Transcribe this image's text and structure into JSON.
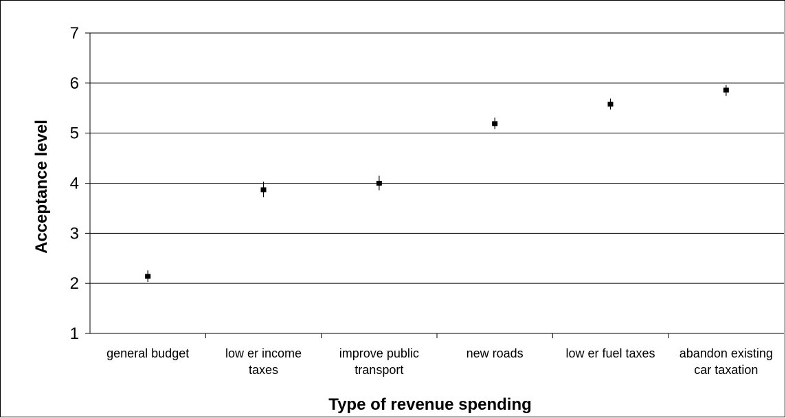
{
  "chart_data": {
    "type": "scatter",
    "title": "",
    "xlabel": "Type of revenue spending",
    "ylabel": "Acceptance level",
    "ylim": [
      1,
      7
    ],
    "yticks": [
      1,
      2,
      3,
      4,
      5,
      6,
      7
    ],
    "grid": true,
    "legend": "none",
    "categories": [
      [
        "general budget"
      ],
      [
        "low er income",
        "taxes"
      ],
      [
        "improve public",
        "transport"
      ],
      [
        "new  roads"
      ],
      [
        "low er fuel taxes"
      ],
      [
        "abandon existing",
        "car taxation"
      ]
    ],
    "series": [
      {
        "values": [
          2.14,
          3.87,
          4.0,
          5.19,
          5.58,
          5.86
        ],
        "error_low": [
          2.03,
          3.72,
          3.86,
          5.08,
          5.47,
          5.74
        ],
        "error_high": [
          2.26,
          4.03,
          4.15,
          5.31,
          5.69,
          5.96
        ]
      }
    ],
    "colors": {
      "marker": "#000000",
      "grid": "#000000"
    }
  }
}
